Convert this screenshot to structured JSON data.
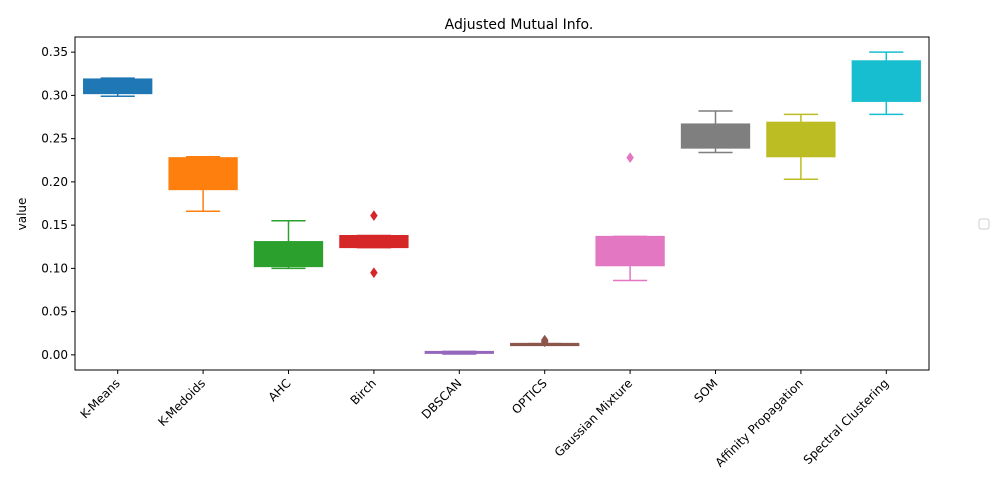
{
  "chart_data": {
    "type": "box",
    "title": "Adjusted Mutual Info.",
    "ylabel": "value",
    "xlabel": "",
    "ylim": [
      -0.0175,
      0.3675
    ],
    "yticks": [
      0.0,
      0.05,
      0.1,
      0.15,
      0.2,
      0.25,
      0.3,
      0.35
    ],
    "ytick_labels": [
      "0.00",
      "0.05",
      "0.10",
      "0.15",
      "0.20",
      "0.25",
      "0.30",
      "0.35"
    ],
    "grid": false,
    "legend": {
      "placement": "center-right",
      "entries": []
    },
    "categories": [
      "K-Means",
      "K-Medoids",
      "AHC",
      "Birch",
      "DBSCAN",
      "OPTICS",
      "Gaussian Mixture",
      "SOM",
      "Affinity Propagation",
      "Spectral Clustering"
    ],
    "boxes": [
      {
        "category": "K-Means",
        "color": "#1f77b4",
        "whislo": 0.299,
        "q1": 0.302,
        "med": 0.318,
        "q3": 0.319,
        "whishi": 0.32,
        "fliers": []
      },
      {
        "category": "K-Medoids",
        "color": "#ff7f0e",
        "whislo": 0.166,
        "q1": 0.191,
        "med": 0.227,
        "q3": 0.228,
        "whishi": 0.229,
        "fliers": []
      },
      {
        "category": "AHC",
        "color": "#2ca02c",
        "whislo": 0.1,
        "q1": 0.102,
        "med": 0.105,
        "q3": 0.131,
        "whishi": 0.155,
        "fliers": []
      },
      {
        "category": "Birch",
        "color": "#d62728",
        "whislo": 0.124,
        "q1": 0.124,
        "med": 0.128,
        "q3": 0.138,
        "whishi": 0.138,
        "fliers": [
          0.161,
          0.095
        ]
      },
      {
        "category": "DBSCAN",
        "color": "#9467bd",
        "whislo": 0.001,
        "q1": 0.002,
        "med": 0.003,
        "q3": 0.004,
        "whishi": 0.004,
        "fliers": []
      },
      {
        "category": "OPTICS",
        "color": "#8c564b",
        "whislo": 0.012,
        "q1": 0.012,
        "med": 0.013,
        "q3": 0.013,
        "whishi": 0.013,
        "fliers": [
          0.017,
          0.015
        ]
      },
      {
        "category": "Gaussian Mixture",
        "color": "#e377c2",
        "whislo": 0.086,
        "q1": 0.103,
        "med": 0.104,
        "q3": 0.137,
        "whishi": 0.137,
        "fliers": [
          0.228
        ]
      },
      {
        "category": "SOM",
        "color": "#7f7f7f",
        "whislo": 0.234,
        "q1": 0.239,
        "med": 0.24,
        "q3": 0.267,
        "whishi": 0.282,
        "fliers": []
      },
      {
        "category": "Affinity Propagation",
        "color": "#bcbd22",
        "whislo": 0.203,
        "q1": 0.229,
        "med": 0.23,
        "q3": 0.269,
        "whishi": 0.278,
        "fliers": []
      },
      {
        "category": "Spectral Clustering",
        "color": "#17becf",
        "whislo": 0.278,
        "q1": 0.293,
        "med": 0.294,
        "q3": 0.34,
        "whishi": 0.35,
        "fliers": []
      }
    ]
  }
}
